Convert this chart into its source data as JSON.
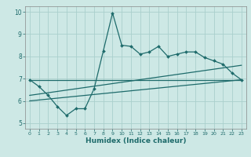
{
  "xlabel": "Humidex (Indice chaleur)",
  "bg_color": "#cde8e5",
  "line_color": "#1e6b6b",
  "grid_color": "#aad0cc",
  "axis_color": "#888888",
  "xlim": [
    -0.5,
    23.5
  ],
  "ylim": [
    4.75,
    10.25
  ],
  "xticks": [
    0,
    1,
    2,
    3,
    4,
    5,
    6,
    7,
    8,
    9,
    10,
    11,
    12,
    13,
    14,
    15,
    16,
    17,
    18,
    19,
    20,
    21,
    22,
    23
  ],
  "yticks": [
    5,
    6,
    7,
    8,
    9,
    10
  ],
  "jagged_x": [
    0,
    1,
    2,
    3,
    4,
    5,
    6,
    7,
    8,
    9,
    10,
    11,
    12,
    13,
    14,
    15,
    16,
    17,
    18,
    19,
    20,
    21,
    22,
    23
  ],
  "jagged_y": [
    6.95,
    6.65,
    6.25,
    5.75,
    5.35,
    5.65,
    5.65,
    6.55,
    8.25,
    9.95,
    8.5,
    8.45,
    8.1,
    8.2,
    8.45,
    8.0,
    8.1,
    8.2,
    8.2,
    7.95,
    7.8,
    7.65,
    7.25,
    6.95
  ],
  "trend1_x": [
    0,
    23
  ],
  "trend1_y": [
    6.95,
    6.95
  ],
  "trend2_x": [
    0,
    23
  ],
  "trend2_y": [
    6.25,
    7.6
  ],
  "trend3_x": [
    0,
    23
  ],
  "trend3_y": [
    6.0,
    6.95
  ]
}
